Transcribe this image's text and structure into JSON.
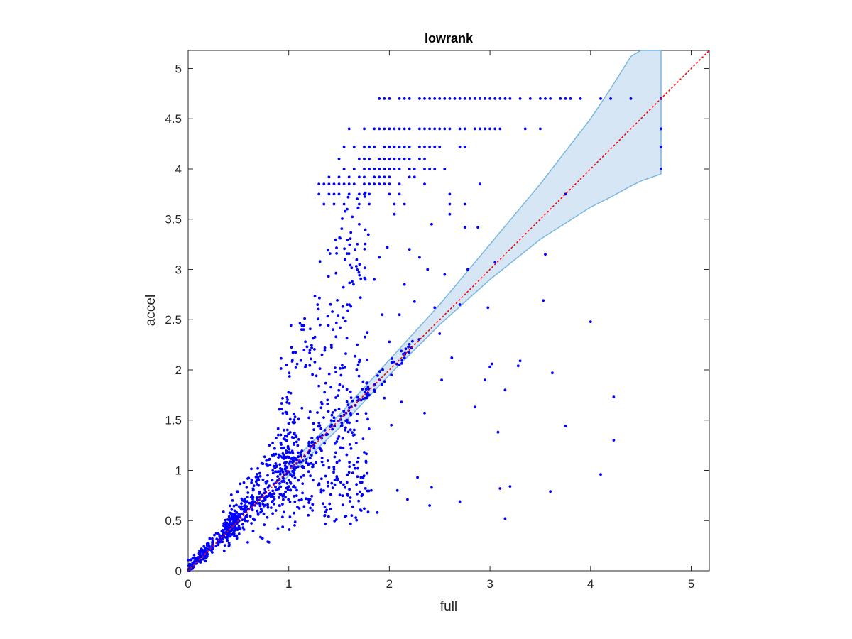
{
  "chart_data": {
    "type": "scatter",
    "title": "lowrank",
    "xlabel": "full",
    "ylabel": "accel",
    "xlim": [
      0,
      5.18
    ],
    "ylim": [
      0,
      5.18
    ],
    "xticks": [
      0,
      1,
      2,
      3,
      4,
      5
    ],
    "xtick_labels": [
      "0",
      "1",
      "2",
      "3",
      "4",
      "5"
    ],
    "yticks": [
      0,
      0.5,
      1,
      1.5,
      2,
      2.5,
      3,
      3.5,
      4,
      4.5,
      5
    ],
    "ytick_labels": [
      "0",
      "0.5",
      "1",
      "1.5",
      "2",
      "2.5",
      "3",
      "3.5",
      "4",
      "4.5",
      "5"
    ],
    "grid": false,
    "colors": {
      "points": "#0000ff",
      "band_fill": "#d6e6f4",
      "band_edge": "#7ab8de",
      "identity_line": "#ff0000",
      "axes": "#262626"
    },
    "identity_line": {
      "style": "dotted",
      "from": [
        0,
        0
      ],
      "to": [
        5.18,
        5.18
      ]
    },
    "band": {
      "x": [
        0.9,
        1.5,
        2.0,
        2.5,
        3.0,
        3.5,
        4.0,
        4.2,
        4.4,
        4.5,
        4.7
      ],
      "upper": [
        0.95,
        1.55,
        2.1,
        2.65,
        3.25,
        3.85,
        4.5,
        4.8,
        5.12,
        5.18,
        5.18
      ],
      "lower": [
        0.85,
        1.42,
        1.95,
        2.45,
        2.9,
        3.3,
        3.62,
        3.72,
        3.83,
        3.88,
        3.95
      ]
    },
    "series": [
      {
        "rows": [
          {
            "y": 4.7,
            "x": [
              1.9,
              1.95,
              2.0,
              2.1,
              2.15,
              2.2,
              2.3,
              2.35,
              2.4,
              2.45,
              2.5,
              2.55,
              2.6,
              2.65,
              2.7,
              2.75,
              2.8,
              2.85,
              2.9,
              2.95,
              3.0,
              3.05,
              3.1,
              3.15,
              3.2,
              3.3,
              3.4,
              3.5,
              3.55,
              3.6,
              3.7,
              3.75,
              3.8,
              3.9,
              4.1,
              4.2,
              4.4,
              4.7
            ]
          },
          {
            "y": 4.4,
            "x": [
              1.6,
              1.75,
              1.85,
              1.9,
              1.95,
              2.0,
              2.05,
              2.1,
              2.15,
              2.2,
              2.3,
              2.35,
              2.4,
              2.45,
              2.5,
              2.55,
              2.6,
              2.7,
              2.75,
              2.85,
              2.9,
              2.95,
              3.0,
              3.05,
              3.1,
              3.35,
              3.5,
              4.7
            ]
          },
          {
            "y": 4.22,
            "x": [
              1.55,
              1.65,
              1.75,
              1.8,
              1.85,
              1.95,
              2.0,
              2.05,
              2.1,
              2.15,
              2.2,
              2.3,
              2.35,
              2.4,
              2.45,
              2.5,
              2.7,
              2.75,
              4.7
            ]
          },
          {
            "y": 4.1,
            "x": [
              1.5,
              1.7,
              1.75,
              1.8,
              1.9,
              1.95,
              2.0,
              2.05,
              2.1,
              2.15,
              2.2,
              2.3,
              2.35
            ]
          },
          {
            "y": 4.0,
            "x": [
              1.55,
              1.65,
              1.75,
              1.8,
              1.85,
              1.9,
              1.95,
              2.0,
              2.05,
              2.1,
              2.2,
              2.25,
              2.35,
              2.4,
              2.45,
              2.55,
              4.7
            ]
          },
          {
            "y": 3.92,
            "x": [
              1.4,
              1.5,
              1.6,
              1.7,
              1.75,
              1.85,
              1.9,
              1.95,
              2.0,
              2.2,
              2.25
            ]
          },
          {
            "y": 3.85,
            "x": [
              1.3,
              1.35,
              1.4,
              1.45,
              1.5,
              1.55,
              1.6,
              1.65,
              1.75,
              1.8,
              1.85,
              1.9,
              1.95,
              2.0,
              2.1,
              2.35,
              2.9
            ]
          },
          {
            "y": 3.75,
            "x": [
              1.3,
              1.4,
              1.45,
              1.5,
              1.6,
              1.7,
              1.75,
              2.0,
              2.1,
              2.6,
              3.75
            ]
          },
          {
            "y": 3.65,
            "x": [
              1.35,
              1.45,
              1.55,
              1.7,
              1.8,
              2.05,
              2.15,
              2.6,
              2.75
            ]
          }
        ],
        "points": [
          [
            4.23,
            1.73
          ],
          [
            4.23,
            1.3
          ],
          [
            4.1,
            0.96
          ],
          [
            4.0,
            2.48
          ],
          [
            3.75,
            1.44
          ],
          [
            3.62,
            1.97
          ],
          [
            3.6,
            0.79
          ],
          [
            3.55,
            3.15
          ],
          [
            3.53,
            2.69
          ],
          [
            3.3,
            2.09
          ],
          [
            3.28,
            2.04
          ],
          [
            3.2,
            0.84
          ],
          [
            3.15,
            0.52
          ],
          [
            3.15,
            1.8
          ],
          [
            3.1,
            0.82
          ],
          [
            3.08,
            1.38
          ],
          [
            3.05,
            3.07
          ],
          [
            3.02,
            2.06
          ],
          [
            3.0,
            2.03
          ],
          [
            2.98,
            2.62
          ],
          [
            2.95,
            1.9
          ],
          [
            2.88,
            3.42
          ],
          [
            2.85,
            1.63
          ],
          [
            2.78,
            3.0
          ],
          [
            2.75,
            3.42
          ],
          [
            2.7,
            2.65
          ],
          [
            2.7,
            0.69
          ],
          [
            2.62,
            2.12
          ],
          [
            2.6,
            3.55
          ],
          [
            2.55,
            2.95
          ],
          [
            2.52,
            1.9
          ],
          [
            2.5,
            2.36
          ],
          [
            2.45,
            2.62
          ],
          [
            2.42,
            3.45
          ],
          [
            2.42,
            0.83
          ],
          [
            2.4,
            0.65
          ],
          [
            2.38,
            3.0
          ],
          [
            2.35,
            1.57
          ],
          [
            2.3,
            3.12
          ],
          [
            2.28,
            0.93
          ],
          [
            2.25,
            2.68
          ],
          [
            2.22,
            2.22
          ],
          [
            2.2,
            3.2
          ],
          [
            2.18,
            0.71
          ],
          [
            2.15,
            2.85
          ],
          [
            2.12,
            1.68
          ],
          [
            2.1,
            2.55
          ],
          [
            2.08,
            0.8
          ],
          [
            2.05,
            3.55
          ],
          [
            2.02,
            1.45
          ],
          [
            2.0,
            2.28
          ],
          [
            1.98,
            3.22
          ],
          [
            1.95,
            1.72
          ],
          [
            1.93,
            2.55
          ],
          [
            1.9,
            3.12
          ],
          [
            1.88,
            0.58
          ],
          [
            1.85,
            2.9
          ],
          [
            1.82,
            0.8
          ],
          [
            1.8,
            3.75
          ],
          [
            1.78,
            2.1
          ],
          [
            1.75,
            1.18
          ],
          [
            1.75,
            0.62
          ],
          [
            1.72,
            0.6
          ],
          [
            1.7,
            3.45
          ],
          [
            1.68,
            2.25
          ],
          [
            1.66,
            1.02
          ],
          [
            1.63,
            2.88
          ],
          [
            1.6,
            0.98
          ],
          [
            1.58,
            3.6
          ],
          [
            2.02,
            1.95
          ],
          [
            2.1,
            2.05
          ],
          [
            2.15,
            2.12
          ],
          [
            1.9,
            1.9
          ],
          [
            1.85,
            1.8
          ],
          [
            1.8,
            1.75
          ]
        ],
        "cluster_seed": 12345
      }
    ]
  }
}
